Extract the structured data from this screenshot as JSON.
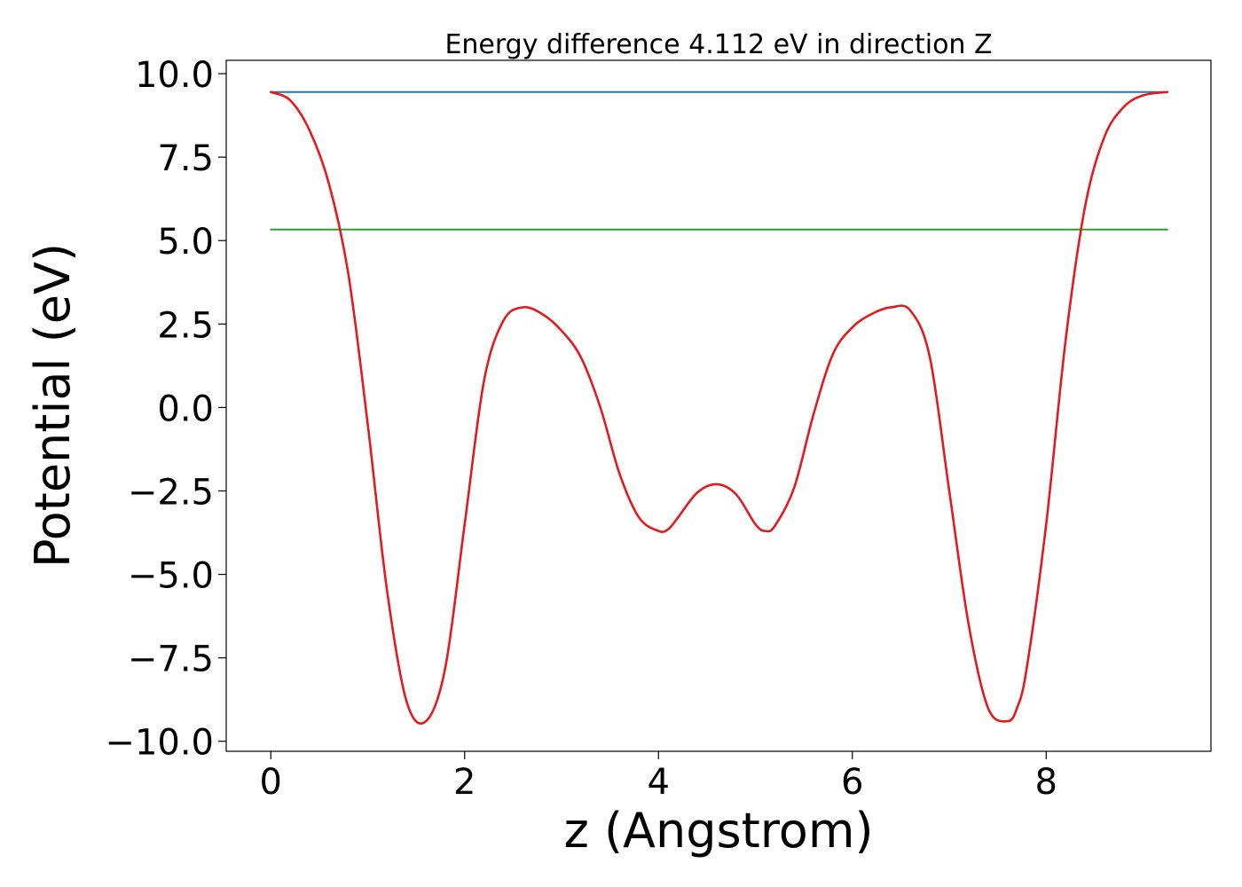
{
  "chart_data": {
    "type": "line",
    "title": "Energy difference 4.112 eV in direction Z",
    "xlabel": "z (Angstrom)",
    "ylabel": "Potential (eV)",
    "xlim": [
      -0.46,
      9.7
    ],
    "ylim": [
      -10.3,
      10.4
    ],
    "xticks": [
      0,
      2,
      4,
      6,
      8
    ],
    "xtick_labels": [
      "0",
      "2",
      "4",
      "6",
      "8"
    ],
    "yticks": [
      10.0,
      7.5,
      5.0,
      2.5,
      0.0,
      -2.5,
      -5.0,
      -7.5,
      -10.0
    ],
    "ytick_labels": [
      "10.0",
      "7.5",
      "5.0",
      "2.5",
      "0.0",
      "−2.5",
      "−5.0",
      "−7.5",
      "−10.0"
    ],
    "grid": false,
    "series": [
      {
        "color": "#1f77b4",
        "x": [
          0,
          9.25
        ],
        "y": [
          9.45,
          9.45
        ]
      },
      {
        "color": "#2ca02c",
        "x": [
          0,
          9.25
        ],
        "y": [
          5.33,
          5.33
        ]
      },
      {
        "color": "#e41a1c",
        "x": [
          0,
          0.2,
          0.4,
          0.6,
          0.8,
          1.0,
          1.2,
          1.4,
          1.6,
          1.8,
          2.0,
          2.2,
          2.4,
          2.6,
          2.8,
          3.0,
          3.2,
          3.4,
          3.6,
          3.8,
          4.0,
          4.1,
          4.2,
          4.4,
          4.6,
          4.8,
          5.0,
          5.1,
          5.2,
          5.4,
          5.6,
          5.8,
          6.0,
          6.2,
          6.4,
          6.6,
          6.8,
          7.0,
          7.2,
          7.4,
          7.6,
          7.7,
          7.8,
          8.0,
          8.2,
          8.4,
          8.6,
          8.8,
          9.0,
          9.25
        ],
        "y": [
          9.45,
          9.2,
          8.3,
          6.7,
          4.0,
          -0.5,
          -5.5,
          -8.8,
          -9.4,
          -7.8,
          -3.5,
          0.8,
          2.6,
          3.0,
          2.8,
          2.3,
          1.5,
          0.0,
          -2.0,
          -3.3,
          -3.7,
          -3.65,
          -3.3,
          -2.55,
          -2.3,
          -2.6,
          -3.5,
          -3.7,
          -3.55,
          -2.4,
          -0.2,
          1.6,
          2.4,
          2.8,
          3.0,
          2.9,
          1.5,
          -2.5,
          -6.5,
          -9.0,
          -9.4,
          -9.0,
          -7.8,
          -3.5,
          2.0,
          6.0,
          8.1,
          9.0,
          9.35,
          9.45
        ]
      }
    ]
  }
}
